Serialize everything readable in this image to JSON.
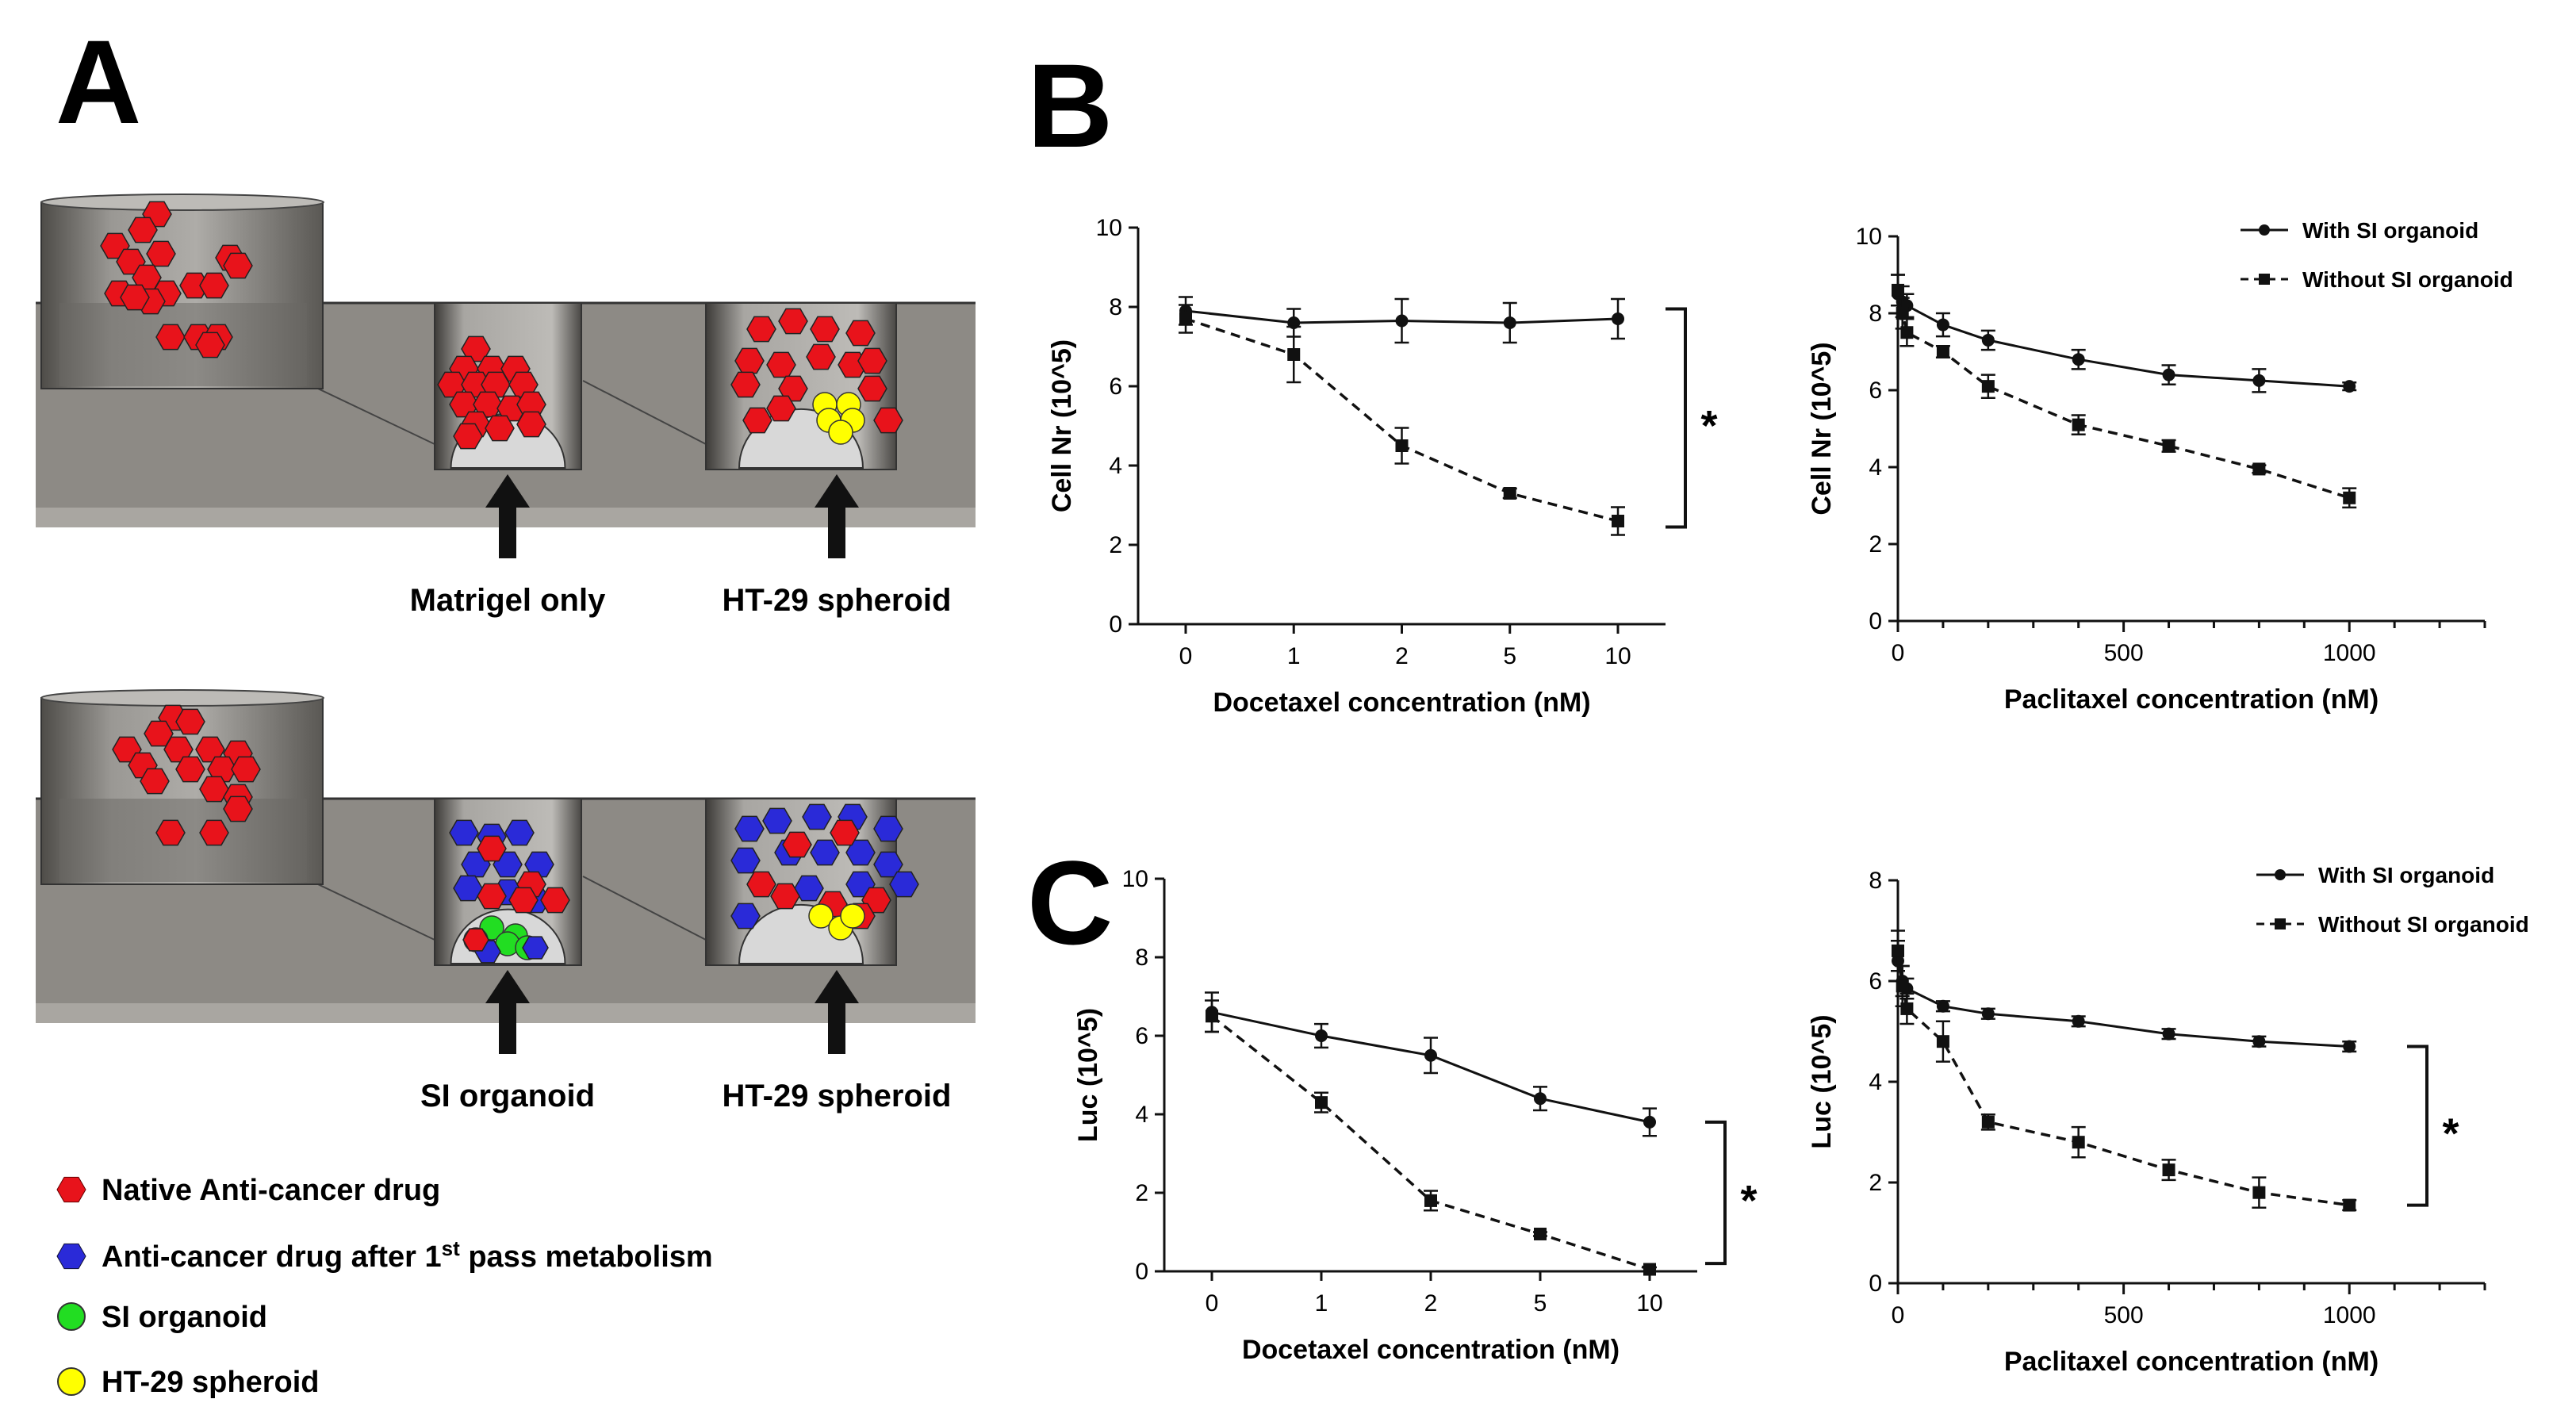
{
  "panels": {
    "A": "A",
    "B": "B",
    "C": "C"
  },
  "schematic": {
    "top_labels": [
      "Matrigel only",
      "HT-29 spheroid"
    ],
    "bottom_labels": [
      "SI organoid",
      "HT-29 spheroid"
    ]
  },
  "legend": [
    {
      "label": "Native Anti-cancer drug",
      "color": "#e8131b",
      "shape": "hexagon"
    },
    {
      "label": "Anti-cancer drug after 1",
      "sup": "st",
      "tail": " pass metabolism",
      "color": "#2a2ad8",
      "shape": "hexagon"
    },
    {
      "label": "SI organoid",
      "color": "#22dd22",
      "shape": "circle"
    },
    {
      "label": "HT-29 spheroid",
      "color": "#ffff00",
      "shape": "circle"
    }
  ],
  "colors": {
    "red_drug": "#e8131b",
    "blue_drug": "#2a2ad8",
    "organoid": "#22dd22",
    "spheroid": "#ffff00",
    "line": "#111111"
  },
  "series_names": [
    "With SI organoid",
    "Without SI organoid"
  ],
  "chart_data": [
    {
      "id": "B1",
      "type": "line",
      "categories": [
        "0",
        "1",
        "2",
        "5",
        "10"
      ],
      "xlabel": "Docetaxel concentration (nM)",
      "ylabel": "Cell  Nr (10^5)",
      "ylim": [
        0,
        10
      ],
      "yticks": [
        0,
        2,
        4,
        6,
        8,
        10
      ],
      "series": [
        {
          "name": "With SI organoid",
          "values": [
            7.9,
            7.6,
            7.65,
            7.6,
            7.7
          ],
          "err": [
            0.35,
            0.35,
            0.55,
            0.5,
            0.5
          ],
          "style": "solid",
          "marker": "circle"
        },
        {
          "name": "Without SI organoid",
          "values": [
            7.7,
            6.8,
            4.5,
            3.3,
            2.6
          ],
          "err": [
            0.35,
            0.7,
            0.45,
            0.12,
            0.35
          ],
          "style": "dashed",
          "marker": "square"
        }
      ],
      "significance": "*"
    },
    {
      "id": "B2",
      "type": "line",
      "x": [
        0,
        10,
        20,
        100,
        200,
        400,
        600,
        800,
        1000
      ],
      "xlabel": "Paclitaxel concentration (nM)",
      "ylabel": "Cell Nr (10^5)",
      "xlim": [
        0,
        1300
      ],
      "xticks": [
        0,
        500,
        1000
      ],
      "ylim": [
        0,
        10
      ],
      "yticks": [
        0,
        2,
        4,
        6,
        8,
        10
      ],
      "legend": {
        "placement": "top-right"
      },
      "series": [
        {
          "name": "With SI organoid",
          "values": [
            8.5,
            8.3,
            8.2,
            7.7,
            7.3,
            6.8,
            6.4,
            6.25,
            6.1
          ],
          "err": [
            0.5,
            0.4,
            0.3,
            0.3,
            0.25,
            0.25,
            0.25,
            0.3,
            0.1
          ],
          "style": "solid",
          "marker": "circle"
        },
        {
          "name": "Without SI organoid",
          "values": [
            8.6,
            8.0,
            7.5,
            7.0,
            6.1,
            5.1,
            4.55,
            3.95,
            3.2
          ],
          "err": [
            0.4,
            0.4,
            0.35,
            0.15,
            0.3,
            0.25,
            0.15,
            0.1,
            0.25
          ],
          "style": "dashed",
          "marker": "square"
        }
      ]
    },
    {
      "id": "C1",
      "type": "line",
      "categories": [
        "0",
        "1",
        "2",
        "5",
        "10"
      ],
      "xlabel": "Docetaxel concentration (nM)",
      "ylabel": "Luc (10^5)",
      "ylim": [
        0,
        10
      ],
      "yticks": [
        0,
        2,
        4,
        6,
        8,
        10
      ],
      "series": [
        {
          "name": "With SI organoid",
          "values": [
            6.6,
            6.0,
            5.5,
            4.4,
            3.8
          ],
          "err": [
            0.5,
            0.3,
            0.45,
            0.3,
            0.35
          ],
          "style": "solid",
          "marker": "circle"
        },
        {
          "name": "Without SI organoid",
          "values": [
            6.5,
            4.3,
            1.8,
            0.95,
            0.05
          ],
          "err": [
            0.4,
            0.25,
            0.25,
            0.05,
            0.05
          ],
          "style": "dashed",
          "marker": "square"
        }
      ],
      "significance": "*"
    },
    {
      "id": "C2",
      "type": "line",
      "x": [
        0,
        10,
        20,
        100,
        200,
        400,
        600,
        800,
        1000
      ],
      "xlabel": "Paclitaxel concentration (nM)",
      "ylabel": "Luc (10^5)",
      "xlim": [
        0,
        1300
      ],
      "xticks": [
        0,
        500,
        1000
      ],
      "ylim": [
        0,
        8
      ],
      "yticks": [
        0,
        2,
        4,
        6,
        8
      ],
      "legend": {
        "placement": "top-right"
      },
      "series": [
        {
          "name": "With SI organoid",
          "values": [
            6.4,
            6.0,
            5.85,
            5.5,
            5.35,
            5.2,
            4.95,
            4.8,
            4.7
          ],
          "err": [
            0.4,
            0.3,
            0.2,
            0.1,
            0.1,
            0.1,
            0.1,
            0.1,
            0.1
          ],
          "style": "solid",
          "marker": "circle"
        },
        {
          "name": "Without SI organoid",
          "values": [
            6.6,
            5.9,
            5.45,
            4.8,
            3.2,
            2.8,
            2.25,
            1.8,
            1.55
          ],
          "err": [
            0.4,
            0.4,
            0.3,
            0.4,
            0.15,
            0.3,
            0.2,
            0.3,
            0.1
          ],
          "style": "dashed",
          "marker": "square"
        }
      ],
      "significance": "*"
    }
  ]
}
